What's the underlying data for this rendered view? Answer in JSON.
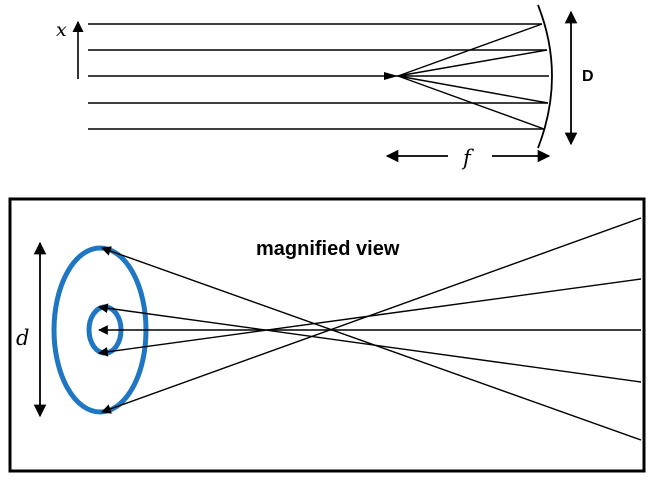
{
  "top_diagram": {
    "x_label": "x",
    "D_label": "D",
    "f_label": "f",
    "incoming_ray_count": 5
  },
  "magnified_panel": {
    "title": "magnified view",
    "d_label": "d",
    "ring_color": "#1f77c4"
  },
  "colors": {
    "line": "#000000",
    "ring": "#1f77c4",
    "background": "#ffffff"
  }
}
